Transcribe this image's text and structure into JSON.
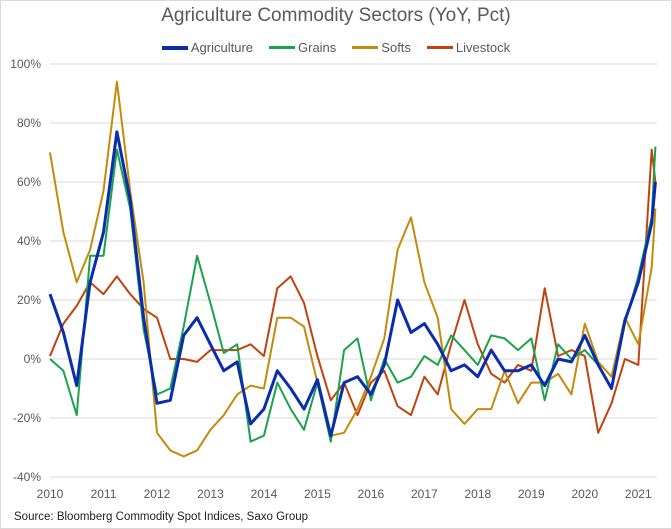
{
  "chart_data": {
    "type": "line",
    "title": "Agriculture Commodity Sectors (YoY, Pct)",
    "xlabel": "",
    "ylabel": "",
    "xlim": [
      2010,
      2021.35
    ],
    "ylim": [
      -40,
      100
    ],
    "x_ticks": [
      "2010",
      "2011",
      "2012",
      "2013",
      "2014",
      "2015",
      "2016",
      "2017",
      "2018",
      "2019",
      "2020",
      "2021"
    ],
    "y_ticks": [
      "-40%",
      "-20%",
      "0%",
      "20%",
      "40%",
      "60%",
      "80%",
      "100%"
    ],
    "grid": "horizontal",
    "legend": "top",
    "x": [
      2010.0,
      2010.25,
      2010.5,
      2010.75,
      2011.0,
      2011.25,
      2011.5,
      2011.75,
      2012.0,
      2012.25,
      2012.5,
      2012.75,
      2013.0,
      2013.25,
      2013.5,
      2013.75,
      2014.0,
      2014.25,
      2014.5,
      2014.75,
      2015.0,
      2015.25,
      2015.5,
      2015.75,
      2016.0,
      2016.25,
      2016.5,
      2016.75,
      2017.0,
      2017.25,
      2017.5,
      2017.75,
      2018.0,
      2018.25,
      2018.5,
      2018.75,
      2019.0,
      2019.25,
      2019.5,
      2019.75,
      2020.0,
      2020.25,
      2020.5,
      2020.75,
      2021.0,
      2021.25,
      2021.32
    ],
    "series": [
      {
        "name": "Agriculture",
        "color": "#0a2db0",
        "values": [
          22,
          9,
          -9,
          26,
          43,
          77,
          54,
          14,
          -15,
          -14,
          8,
          14,
          5,
          -4,
          -1,
          -22,
          -17,
          -4,
          -10,
          -17,
          -7,
          -26,
          -8,
          -6,
          -12,
          -2,
          20,
          9,
          12,
          5,
          -4,
          -2,
          -6,
          3,
          -4,
          -4,
          -2,
          -9,
          0,
          -1,
          8,
          -2,
          -10,
          13,
          26,
          46,
          60
        ]
      },
      {
        "name": "Grains",
        "color": "#1aa34a",
        "values": [
          0,
          -4,
          -19,
          35,
          35,
          71,
          51,
          10,
          -12,
          -10,
          11,
          35,
          19,
          2,
          5,
          -28,
          -26,
          -8,
          -17,
          -24,
          -8,
          -28,
          3,
          7,
          -14,
          0,
          -8,
          -6,
          1,
          -2,
          8,
          3,
          -2,
          8,
          7,
          3,
          7,
          -14,
          5,
          0,
          3,
          -2,
          -10,
          12,
          28,
          48,
          72
        ]
      },
      {
        "name": "Softs",
        "color": "#c58a0a",
        "values": [
          70,
          43,
          26,
          37,
          57,
          94,
          57,
          26,
          -25,
          -31,
          -33,
          -31,
          -24,
          -19,
          -12,
          -9,
          -10,
          14,
          14,
          11,
          -8,
          -26,
          -25,
          -17,
          -6,
          7,
          37,
          48,
          26,
          14,
          -17,
          -22,
          -17,
          -17,
          -4,
          -15,
          -8,
          -8,
          -5,
          -12,
          12,
          -1,
          -6,
          14,
          5,
          31,
          51
        ]
      },
      {
        "name": "Livestock",
        "color": "#c0430f",
        "values": [
          1,
          12,
          18,
          26,
          22,
          28,
          22,
          17,
          14,
          0,
          0,
          -1,
          3,
          3,
          3,
          5,
          1,
          24,
          28,
          19,
          1,
          -14,
          -8,
          -19,
          -8,
          -4,
          -16,
          -19,
          -6,
          -12,
          5,
          20,
          5,
          -5,
          -8,
          -2,
          -4,
          24,
          1,
          3,
          1,
          -25,
          -15,
          0,
          -2,
          71,
          60
        ]
      }
    ]
  },
  "source": "Source: Bloomberg Commodity Spot Indices, Saxo Group"
}
